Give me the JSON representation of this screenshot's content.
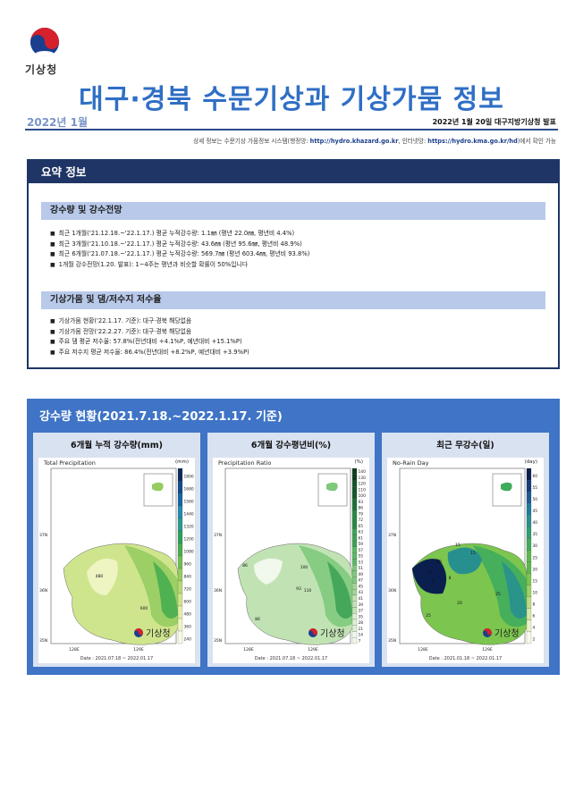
{
  "header": {
    "agency_logo_text": "기상청",
    "title": "대구·경북 수문기상과 기상가뭄 정보",
    "date_label": "2022년 1월",
    "issuer": "2022년 1월 20일 대구지방기상청 발표",
    "source_prefix": "상세 정보는 수문기상 가뭄정보 시스템(행정망: ",
    "source_url1": "http://hydro.khazard.go.kr",
    "source_mid": ", 인터넷망: ",
    "source_url2": "https://hydro.kma.go.kr/hd",
    "source_suffix": ")에서 확인 가능"
  },
  "summary": {
    "title": "요약 정보",
    "precip_heading": "강수량 및 강수전망",
    "precip_items": [
      "최근 1개월('21.12.18.~'22.1.17.) 평균 누적강수량: 1.1㎜ (평년 22.0㎜, 평년비 4.4%)",
      "최근 3개월('21.10.18.~'22.1.17.) 평균 누적강수량: 43.6㎜ (평년 95.6㎜, 평년비 48.9%)",
      "최근 6개월('21.07.18.~'22.1.17.) 평균 누적강수량: 569.7㎜ (평년 603.4㎜, 평년비 93.8%)",
      "1개월 강수전망(1.20. 발표): 1~4주는 평년과 비슷할 확률이 50%입니다"
    ],
    "drought_heading": "기상가뭄 및 댐/저수지 저수율",
    "drought_items": [
      "기상가뭄 현황('22.1.17. 기준): 대구·경북 해당없음",
      "기상가뭄 전망('22.2.27. 기준): 대구·경북 해당없음",
      "주요 댐 평균 저수율: 57.8%(전년대비 +4.1%P, 예년대비 +15.1%P)",
      "주요 저수지 평균 저수율: 86.4%(전년대비 +8.2%P, 예년대비 +3.9%P)"
    ]
  },
  "precip_status": {
    "title": "강수량 현황(2021.7.18.~2022.1.17. 기준)",
    "watermark": "기상청",
    "lat_labels": [
      "37N",
      "36N",
      "35N"
    ],
    "lon_labels": [
      "128E",
      "129E"
    ],
    "panels": [
      {
        "title": "6개월 누적 강수량(mm)",
        "map_label": "Total Precipitation",
        "unit": "(mm)",
        "date": "Date : 2021.07.18 ~ 2022.01.17",
        "colorbar": [
          "1800",
          "1680",
          "1560",
          "1440",
          "1320",
          "1200",
          "1080",
          "960",
          "840",
          "720",
          "600",
          "480",
          "360",
          "240"
        ],
        "contour_labels": [
          "480",
          "600"
        ],
        "palette": [
          "#0b2a5c",
          "#124a8a",
          "#1565a6",
          "#2589b0",
          "#2c9a8c",
          "#2f9e5b",
          "#48ad4f",
          "#6ebd52",
          "#96cc61",
          "#b7da76",
          "#cfe58d",
          "#e2eea6",
          "#eef5c2",
          "#f8fbe2"
        ]
      },
      {
        "title": "6개월 강수평년비(%)",
        "map_label": "Precipitation Ratio",
        "unit": "(%)",
        "date": "Date : 2021.07.18 ~ 2022.01.17",
        "colorbar": [
          "140",
          "130",
          "120",
          "110",
          "100",
          "93",
          "86",
          "79",
          "72",
          "65",
          "63",
          "61",
          "59",
          "57",
          "55",
          "53",
          "51",
          "49",
          "47",
          "45",
          "43",
          "41",
          "39",
          "37",
          "35",
          "28",
          "21",
          "14",
          "7"
        ],
        "contour_labels": [
          "86",
          "100",
          "93",
          "110",
          "86"
        ],
        "palette": [
          "#0d3e1c",
          "#14582a",
          "#1c7236",
          "#2a8a43",
          "#3ea355",
          "#5bb866",
          "#7fc97d",
          "#a1d696",
          "#c1e3b4",
          "#ddefd2",
          "#f1f8ec"
        ]
      },
      {
        "title": "최근 무강수(일)",
        "map_label": "No-Rain Day",
        "unit": "(day)",
        "date": "Date : 2021.01.18 ~ 2022.01.17",
        "colorbar": [
          "60",
          "55",
          "50",
          "45",
          "40",
          "35",
          "30",
          "25",
          "20",
          "15",
          "10",
          "8",
          "6",
          "4",
          "2"
        ],
        "contour_labels": [
          "20",
          "15",
          "15",
          "6",
          "4",
          "8",
          "20",
          "25",
          "25"
        ],
        "palette": [
          "#0a1f4e",
          "#123c7a",
          "#1a5b93",
          "#1f7aa0",
          "#27908f",
          "#2f9e74",
          "#3fac5c",
          "#5bb94e",
          "#7cc54f",
          "#9fd063",
          "#bedb82",
          "#d7e7a6",
          "#ebf2c9",
          "#f7fae6"
        ]
      }
    ]
  }
}
